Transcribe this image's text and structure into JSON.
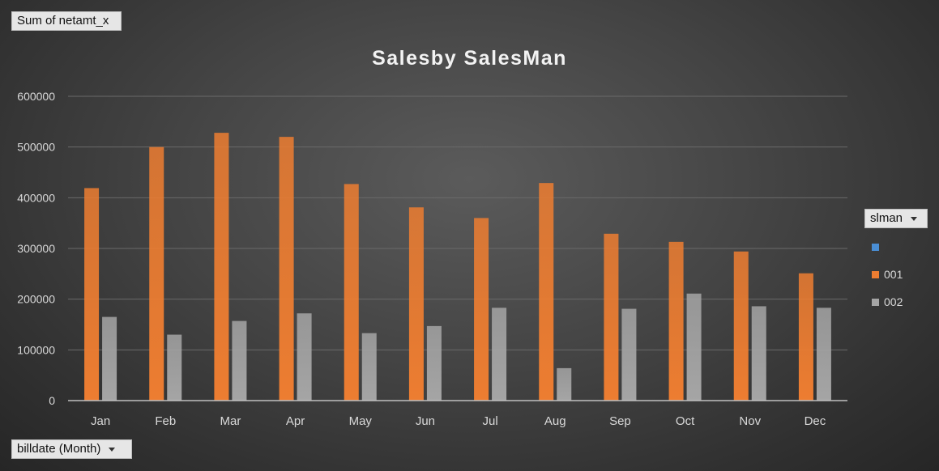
{
  "value_field": {
    "label": "Sum of netamt_x"
  },
  "axis_field": {
    "label": "billdate (Month)"
  },
  "legend_field": {
    "label": "slman"
  },
  "colors": {
    "series_blank": "#4a8ed4",
    "series_001": "#ed7d31",
    "series_002": "#a5a5a5",
    "gridline": "#6a6a6a",
    "axis_text": "#d9d9d9"
  },
  "chart_data": {
    "type": "bar",
    "title": "Salesby SalesMan",
    "xlabel": "",
    "ylabel": "",
    "ylim": [
      0,
      600000
    ],
    "yticks": [
      0,
      100000,
      200000,
      300000,
      400000,
      500000,
      600000
    ],
    "ytick_labels": [
      "0",
      "100000",
      "200000",
      "300000",
      "400000",
      "500000",
      "600000"
    ],
    "grid": true,
    "legend_position": "right",
    "categories": [
      "Jan",
      "Feb",
      "Mar",
      "Apr",
      "May",
      "Jun",
      "Jul",
      "Aug",
      "Sep",
      "Oct",
      "Nov",
      "Dec"
    ],
    "series": [
      {
        "name": "",
        "color": "#4a8ed4",
        "values": [
          0,
          0,
          0,
          0,
          0,
          0,
          0,
          0,
          0,
          0,
          0,
          0
        ]
      },
      {
        "name": "001",
        "color": "#ed7d31",
        "values": [
          419000,
          500000,
          528000,
          520000,
          427000,
          381000,
          360000,
          429000,
          329000,
          313000,
          294000,
          251000
        ]
      },
      {
        "name": "002",
        "color": "#a5a5a5",
        "values": [
          165000,
          130000,
          157000,
          172000,
          133000,
          147000,
          183000,
          64000,
          181000,
          211000,
          186000,
          183000
        ]
      }
    ]
  }
}
